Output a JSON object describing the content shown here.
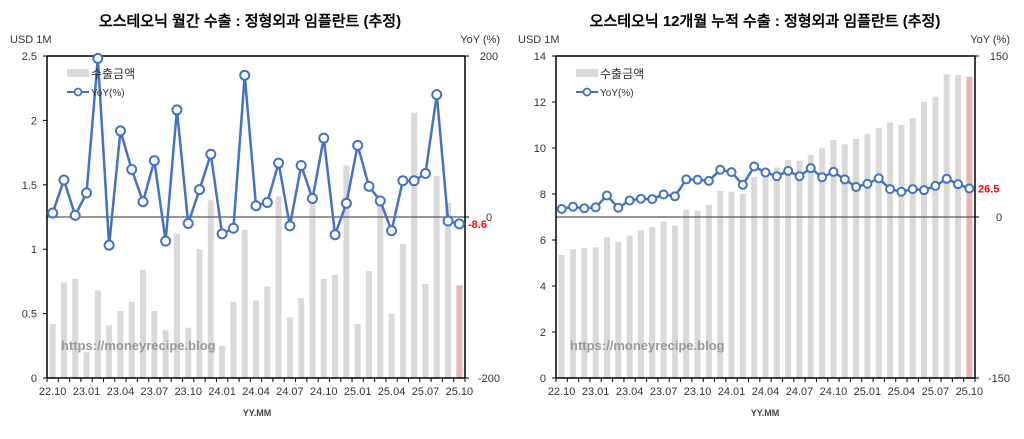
{
  "colors": {
    "bar": "#d9d9d9",
    "bar_latest": "#e8b4b4",
    "line": "#4472c4",
    "marker_fill": "#ffffff",
    "highlight_label": "#ff0000",
    "zero_line": "#595959"
  },
  "watermark": "https://moneyrecipe.blog",
  "chart_data": [
    {
      "type": "bar+line",
      "title": "오스테오닉 월간 수출 : 정형외과 임플란트 (추정)",
      "ylabel_left": "USD 1M",
      "ylabel_right": "YoY (%)",
      "xlabel": "YY.MM",
      "ylim_left": [
        0,
        2.5
      ],
      "yticks_left": [
        "0",
        "0.5",
        "1",
        "1.5",
        "2",
        "2.5"
      ],
      "ylim_right": [
        -200,
        200
      ],
      "yticks_right": [
        "-200",
        "0",
        "200"
      ],
      "xtick_labels": [
        "22.10",
        "23.01",
        "23.04",
        "23.07",
        "23.10",
        "24.01",
        "24.04",
        "24.07",
        "24.10",
        "25.01",
        "25.04",
        "25.07",
        "25.10"
      ],
      "legend": [
        "수출금액",
        "YoY(%)"
      ],
      "legend_position": "top-left",
      "grid": false,
      "last_label": "-8.6",
      "categories": [
        "22.10",
        "22.11",
        "22.12",
        "23.01",
        "23.02",
        "23.03",
        "23.04",
        "23.05",
        "23.06",
        "23.07",
        "23.08",
        "23.09",
        "23.10",
        "23.11",
        "23.12",
        "24.01",
        "24.02",
        "24.03",
        "24.04",
        "24.05",
        "24.06",
        "24.07",
        "24.08",
        "24.09",
        "24.10",
        "24.11",
        "24.12",
        "25.01",
        "25.02",
        "25.03",
        "25.04",
        "25.05",
        "25.06",
        "25.07",
        "25.08",
        "25.09",
        "25.10"
      ],
      "series": [
        {
          "name": "수출금액",
          "axis": "left",
          "values": [
            0.42,
            0.74,
            0.77,
            0.2,
            0.68,
            0.41,
            0.52,
            0.59,
            0.84,
            0.52,
            0.37,
            1.12,
            0.39,
            1.0,
            1.38,
            0.25,
            0.59,
            1.15,
            0.6,
            0.71,
            1.41,
            0.47,
            0.62,
            1.38,
            0.77,
            0.8,
            1.65,
            0.42,
            0.83,
            1.36,
            0.5,
            1.04,
            2.06,
            0.73,
            1.57,
            1.36,
            0.72
          ]
        },
        {
          "name": "YoY(%)",
          "axis": "right",
          "values": [
            5,
            46,
            2,
            30,
            197,
            -35,
            107,
            59,
            19,
            70,
            -30,
            133,
            -8,
            34,
            78,
            -21,
            -14,
            176,
            14,
            18,
            67,
            -11,
            64,
            23,
            98,
            -22,
            17,
            89,
            38,
            20,
            -17,
            45,
            45,
            54,
            152,
            -5,
            -8.6
          ]
        }
      ]
    },
    {
      "type": "bar+line",
      "title": "오스테오닉 12개월 누적 수출 : 정형외과 임플란트 (추정)",
      "ylabel_left": "USD 1M",
      "ylabel_right": "YoY (%)",
      "xlabel": "YY.MM",
      "ylim_left": [
        0,
        14
      ],
      "yticks_left": [
        "0",
        "2",
        "4",
        "6",
        "8",
        "10",
        "12",
        "14"
      ],
      "ylim_right": [
        -150,
        150
      ],
      "yticks_right": [
        "-150",
        "0",
        "150"
      ],
      "xtick_labels": [
        "22.10",
        "23.01",
        "23.04",
        "23.07",
        "23.10",
        "24.01",
        "24.04",
        "24.07",
        "24.10",
        "25.01",
        "25.04",
        "25.07",
        "25.10"
      ],
      "legend": [
        "수출금액",
        "YoY(%)"
      ],
      "legend_position": "top-left",
      "grid": false,
      "last_label": "26.5",
      "categories": [
        "22.10",
        "22.11",
        "22.12",
        "23.01",
        "23.02",
        "23.03",
        "23.04",
        "23.05",
        "23.06",
        "23.07",
        "23.08",
        "23.09",
        "23.10",
        "23.11",
        "23.12",
        "24.01",
        "24.02",
        "24.03",
        "24.04",
        "24.05",
        "24.06",
        "24.07",
        "24.08",
        "24.09",
        "24.10",
        "24.11",
        "24.12",
        "25.01",
        "25.02",
        "25.03",
        "25.04",
        "25.05",
        "25.06",
        "25.07",
        "25.08",
        "25.09",
        "25.10"
      ],
      "series": [
        {
          "name": "수출금액",
          "axis": "left",
          "values": [
            5.35,
            5.6,
            5.65,
            5.68,
            6.12,
            5.92,
            6.2,
            6.42,
            6.57,
            6.8,
            6.63,
            7.32,
            7.28,
            7.52,
            8.13,
            8.1,
            8.0,
            8.75,
            8.85,
            9.15,
            9.48,
            9.44,
            9.7,
            9.99,
            10.35,
            10.16,
            10.4,
            10.6,
            10.87,
            11.1,
            11.0,
            11.3,
            12.0,
            12.23,
            13.2,
            13.18,
            13.1
          ]
        },
        {
          "name": "YoY(%)",
          "axis": "right",
          "values": [
            7.5,
            9.6,
            8.1,
            9,
            20,
            8.6,
            15.4,
            17,
            16.7,
            21,
            19.3,
            35,
            34.7,
            33.6,
            44,
            41.8,
            30,
            47,
            41.5,
            38,
            43,
            38,
            45.5,
            37,
            42,
            35,
            28,
            31,
            36,
            26,
            23.5,
            26,
            25,
            29,
            35.6,
            30.6,
            26.5
          ]
        }
      ]
    }
  ]
}
